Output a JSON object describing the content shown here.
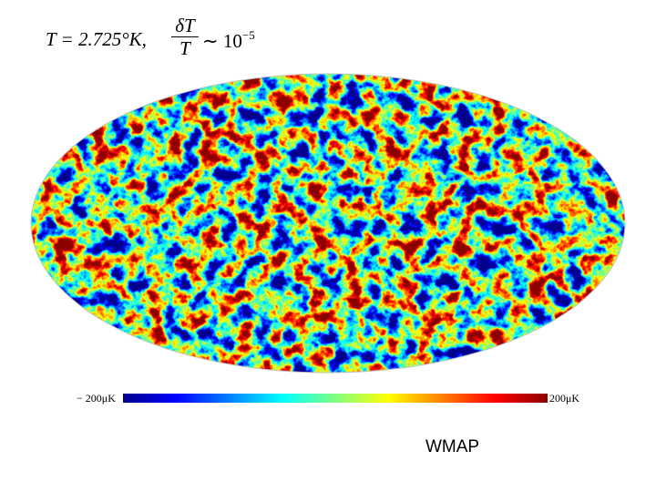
{
  "formula": {
    "temperature": "T = 2.725°K,",
    "numerator": "δT",
    "denominator": "T",
    "relation": "∼ 10",
    "exponent": "−5"
  },
  "colorbar": {
    "min_label": "− 200μK",
    "max_label": "200μK"
  },
  "caption": "WMAP"
}
